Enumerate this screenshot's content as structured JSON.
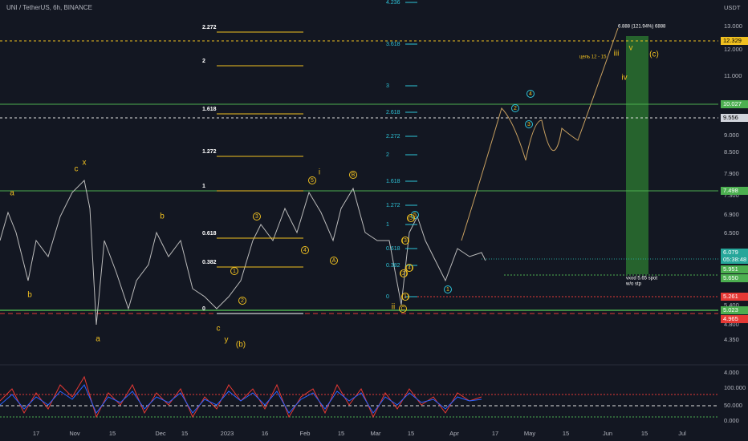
{
  "header": {
    "symbol": "UNI / TetherUS, 6h, BINANCE"
  },
  "price_axis": {
    "unit": "USDT",
    "labels": [
      "13.000",
      "12.000",
      "11.000",
      "9.000",
      "8.500",
      "7.900",
      "7.300",
      "6.900",
      "6.500",
      "5.400",
      "4.800",
      "4.350",
      "4.000"
    ]
  },
  "oscillator_axis": [
    "100.000",
    "50.000",
    "0.000"
  ],
  "price_tags": [
    "12.329",
    "10.027",
    "9.556",
    "7.498",
    "6.079",
    "05:38:48",
    "5.951",
    "5.650",
    "5.261",
    "5.023",
    "4.965"
  ],
  "time_axis": [
    "17",
    "Nov",
    "15",
    "Dec",
    "15",
    "2023",
    "16",
    "Feb",
    "15",
    "Mar",
    "15",
    "Apr",
    "17",
    "May",
    "15",
    "Jun",
    "15",
    "Jul"
  ],
  "fib_1": [
    "2.272",
    "2",
    "1.618",
    "1.272",
    "1",
    "0.618",
    "0.382",
    "0"
  ],
  "fib_2": [
    "4.236",
    "3.618",
    "3",
    "2.618",
    "2.272",
    "2",
    "1.618",
    "1.272",
    "1",
    "0.618",
    "0.382",
    "0"
  ],
  "wave_labels": [
    "a",
    "c",
    "x",
    "b",
    "a",
    "b",
    "c",
    "y",
    "(b)",
    "i",
    "ii",
    "iii",
    "iv",
    "v",
    "(c)"
  ],
  "circled_labels": [
    "1",
    "2",
    "3",
    "4",
    "5",
    "A",
    "B",
    "C",
    "1",
    "2",
    "3",
    "4",
    "5",
    "(1)",
    "(2)",
    "(3)",
    "(4)",
    "(5)"
  ],
  "annotations": [
    "6.888 (121.94%) 6888",
    "цель 12 - 15",
    "vxod 5.65 spot",
    "w/o stp"
  ]
}
